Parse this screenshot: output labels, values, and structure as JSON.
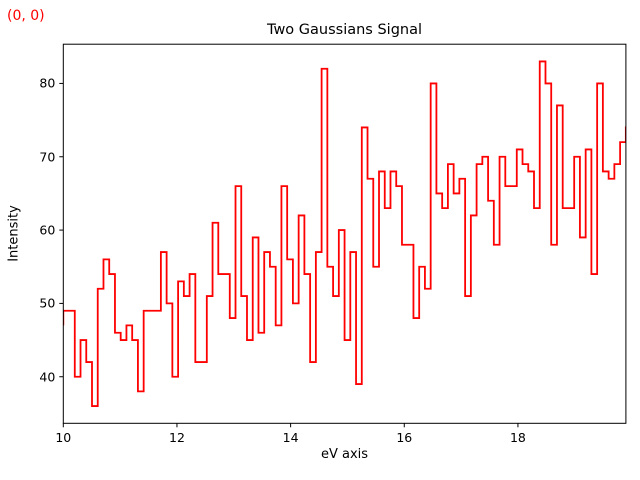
{
  "figure": {
    "annotation": {
      "text": "(0, 0)",
      "color": "#ff0000"
    }
  },
  "chart_data": {
    "type": "line",
    "subtype": "step",
    "drawstyle": "steps-pre",
    "title": "Two Gaussians Signal",
    "xlabel": "eV axis",
    "ylabel": "Intensity",
    "line_color": "#ff0000",
    "line_width": 1.8,
    "background": "#ffffff",
    "grid": false,
    "legend": null,
    "x_start": 10.0,
    "x_end": 20.0,
    "n_points": 100,
    "xlim": [
      10.0,
      19.9
    ],
    "ylim": [
      33.65,
      85.35
    ],
    "x_ticks": [
      10,
      12,
      14,
      16,
      18
    ],
    "y_ticks": [
      40,
      50,
      60,
      70,
      80
    ],
    "y_values": [
      47,
      49,
      49,
      40,
      45,
      42,
      36,
      52,
      56,
      54,
      46,
      45,
      47,
      45,
      38,
      49,
      49,
      49,
      57,
      50,
      40,
      53,
      51,
      54,
      42,
      42,
      51,
      61,
      54,
      54,
      48,
      66,
      51,
      45,
      59,
      46,
      57,
      55,
      47,
      66,
      56,
      50,
      62,
      54,
      42,
      57,
      82,
      55,
      51,
      60,
      45,
      57,
      39,
      74,
      67,
      55,
      68,
      63,
      68,
      66,
      58,
      58,
      48,
      55,
      52,
      80,
      65,
      63,
      69,
      65,
      67,
      51,
      62,
      69,
      70,
      64,
      58,
      70,
      66,
      66,
      71,
      69,
      68,
      63,
      83,
      80,
      58,
      77,
      63,
      63,
      70,
      59,
      71,
      54,
      80,
      68,
      67,
      69,
      72,
      74
    ]
  }
}
